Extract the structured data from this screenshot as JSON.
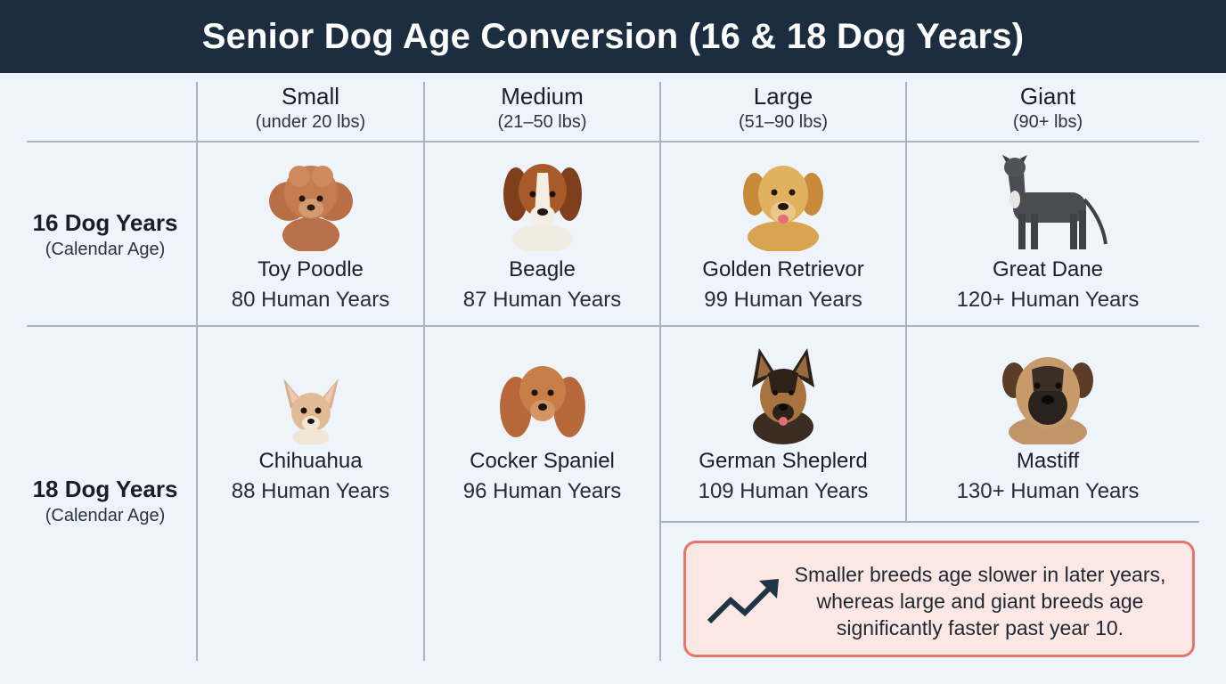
{
  "title": "Senior Dog Age Conversion (16 & 18 Dog Years)",
  "columns": [
    {
      "name": "Small",
      "range": "(under 20 lbs)"
    },
    {
      "name": "Medium",
      "range": "(21–50 lbs)"
    },
    {
      "name": "Large",
      "range": "(51–90 lbs)"
    },
    {
      "name": "Giant",
      "range": "(90+ lbs)"
    }
  ],
  "rows": [
    {
      "title": "16 Dog Years",
      "sub": "(Calendar Age)"
    },
    {
      "title": "18 Dog Years",
      "sub": "(Calendar Age)"
    }
  ],
  "cells": [
    [
      {
        "breed": "Toy Poodle",
        "human": "80 Human Years",
        "image": "toy-poodle-photo"
      },
      {
        "breed": "Beagle",
        "human": "87 Human Years",
        "image": "beagle-photo"
      },
      {
        "breed": "Golden Retrievor",
        "human": "99 Human Years",
        "image": "golden-retriever-photo"
      },
      {
        "breed": "Great Dane",
        "human": "120+ Human Years",
        "image": "great-dane-photo"
      }
    ],
    [
      {
        "breed": "Chihuahua",
        "human": "88 Human Years",
        "image": "chihuahua-photo"
      },
      {
        "breed": "Cocker Spaniel",
        "human": "96 Human Years",
        "image": "cocker-spaniel-photo"
      },
      {
        "breed": "German Sheplerd",
        "human": "109 Human Years",
        "image": "german-shepherd-photo"
      },
      {
        "breed": "Mastiff",
        "human": "130+ Human Years",
        "image": "mastiff-photo"
      }
    ]
  ],
  "note": {
    "icon": "trend-up-arrow-icon",
    "text": "Smaller breeds age slower in later years, whereas large and giant breeds age significantly faster past year 10."
  },
  "colors": {
    "header_bg": "#1b2d3e",
    "page_bg": "#eef4f9",
    "grid_line": "#a7b5c2",
    "note_bg": "#fbe8e5",
    "note_border": "#e2776b",
    "icon": "#1f3444"
  }
}
